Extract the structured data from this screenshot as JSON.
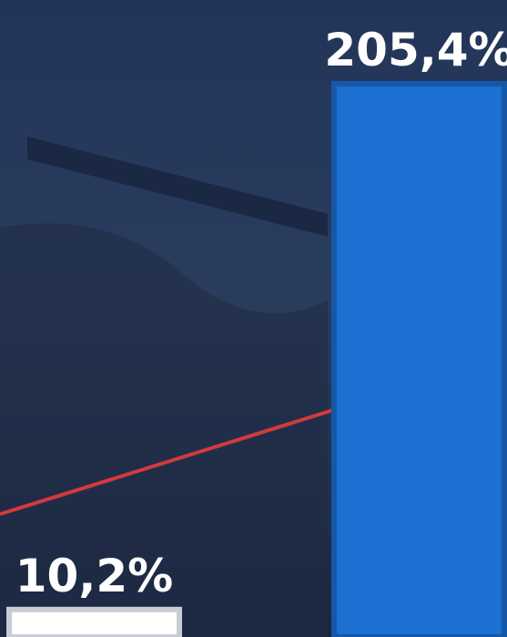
{
  "chart_data": {
    "type": "bar",
    "categories": [
      null,
      null
    ],
    "values": [
      10.2,
      205.4
    ],
    "value_labels": [
      "10,2%",
      "205,4%"
    ],
    "colors": [
      "#ffffff",
      "#1d6fd1"
    ]
  }
}
